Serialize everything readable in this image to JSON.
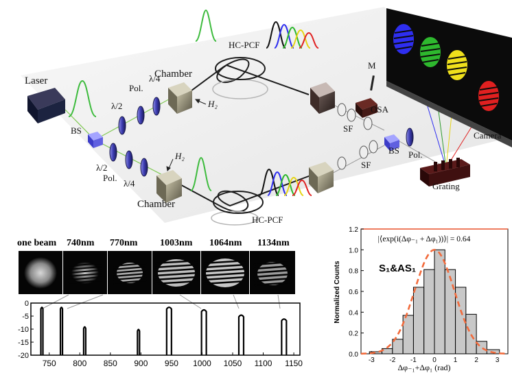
{
  "setup_labels": {
    "laser": "Laser",
    "bs_left": "BS",
    "half_wave_top": "λ/2",
    "pol_top": "Pol.",
    "quarter_wave_top": "λ/4",
    "half_wave_bottom": "λ/2",
    "pol_bottom": "Pol.",
    "quarter_wave_bottom": "λ/4",
    "chamber_top": "Chamber",
    "chamber_bottom": "Chamber",
    "h2_top": "H₂",
    "h2_bottom": "H₂",
    "hcpcf_top": "HC-PCF",
    "hcpcf_bottom": "HC-PCF",
    "mirror": "M",
    "osa": "OSA",
    "sf_top": "SF",
    "sf_bottom": "SF",
    "bs_right": "BS",
    "pol_right": "Pol.",
    "camera": "Camera",
    "grating": "Grating"
  },
  "frames": [
    {
      "label": "one beam"
    },
    {
      "label": "740nm"
    },
    {
      "label": "770nm"
    },
    {
      "label": "1003nm"
    },
    {
      "label": "1064nm"
    },
    {
      "label": "1134nm"
    }
  ],
  "spectrum": {
    "type": "line",
    "x_ticks": [
      "750",
      "800",
      "850",
      "900",
      "950",
      "1000",
      "1050",
      "1100",
      "1150"
    ],
    "y_ticks": [
      "0",
      "-5",
      "-10",
      "-15",
      "-20"
    ],
    "xlim": [
      720,
      1160
    ],
    "ylim": [
      -20,
      0
    ],
    "peaks": [
      {
        "center": 738,
        "top": -1.5
      },
      {
        "center": 770,
        "top": -1.5
      },
      {
        "center": 808,
        "top": -9
      },
      {
        "center": 896,
        "top": -10
      },
      {
        "center": 946,
        "top": -1.5
      },
      {
        "center": 1003,
        "top": -2.5
      },
      {
        "center": 1064,
        "top": -4.5
      },
      {
        "center": 1134,
        "top": -6
      }
    ]
  },
  "chart_data": {
    "type": "bar",
    "title": "S₁&AS₁",
    "annotation": "|⟨exp(i(Δφ₋₁ + Δφ₁))⟩| = 0.64",
    "xlabel": "Δφ₋₁+Δφ₁ (rad)",
    "ylabel": "Normalized Counts",
    "x_ticks": [
      "-3",
      "-2",
      "-1",
      "0",
      "1",
      "2",
      "3"
    ],
    "y_ticks": [
      "0.0",
      "0.2",
      "0.4",
      "0.6",
      "0.8",
      "1.0",
      "1.2"
    ],
    "xlim": [
      -3.5,
      3.5
    ],
    "ylim": [
      0,
      1.2
    ],
    "bin_edges": [
      -3.1,
      -2.5,
      -2.0,
      -1.5,
      -1.0,
      -0.5,
      0.0,
      0.5,
      1.0,
      1.5,
      2.0,
      2.5,
      3.1
    ],
    "values": [
      0.02,
      0.05,
      0.14,
      0.37,
      0.64,
      0.81,
      1.0,
      0.81,
      0.64,
      0.38,
      0.12,
      0.04
    ],
    "fit": "gaussian",
    "fit_color": "#f26a3b",
    "bar_color": "#c8c8c8"
  }
}
